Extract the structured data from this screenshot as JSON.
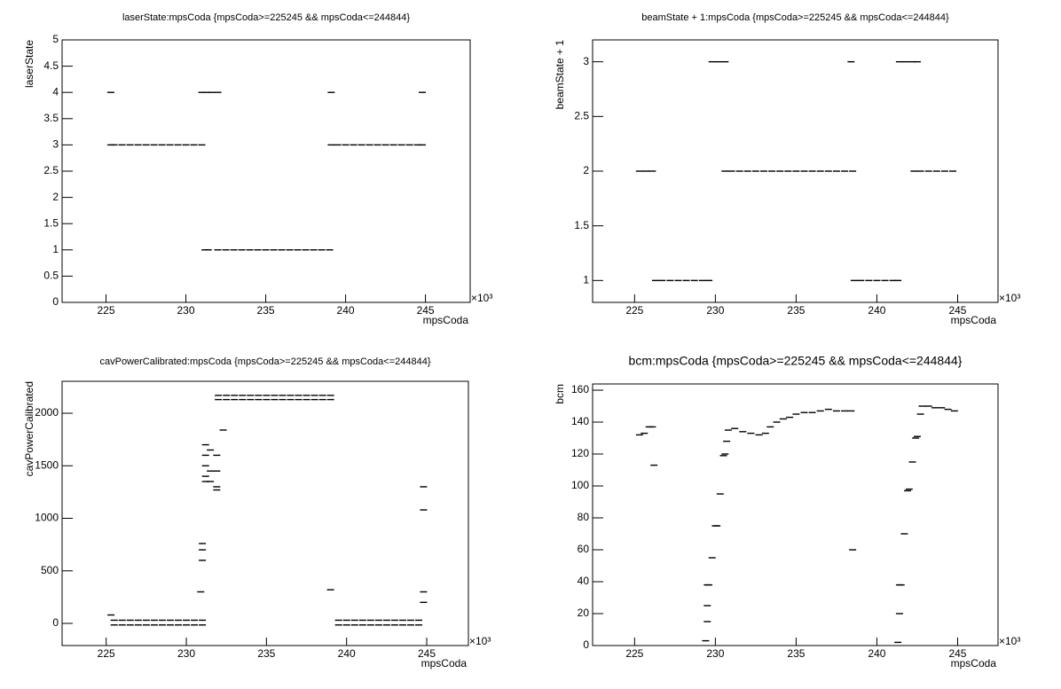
{
  "chart_data": [
    {
      "type": "scatter",
      "title": "laserState:mpsCoda {mpsCoda>=225245 && mpsCoda<=244844}",
      "x_label": "mpsCoda",
      "y_label": "laserState",
      "x_exponent": "×10³",
      "color": "#000000",
      "xlim": [
        222.25,
        247.8
      ],
      "xticks": [
        225,
        230,
        235,
        240,
        245
      ],
      "ylim": [
        0,
        5
      ],
      "yticks": [
        0,
        0.5,
        1,
        1.5,
        2,
        2.5,
        3,
        3.5,
        4,
        4.5,
        5
      ],
      "x": [
        225.3,
        225.5,
        226,
        226.5,
        227,
        227.5,
        228,
        228.5,
        229,
        229.5,
        230,
        230.5,
        231,
        225.3,
        231,
        231.3,
        231.6,
        232,
        239.1,
        244.8,
        231.2,
        231.4,
        232,
        232.5,
        233,
        233.5,
        234,
        234.5,
        235,
        235.5,
        236,
        236.5,
        237,
        237.5,
        238,
        238.5,
        239,
        239.1,
        239.5,
        240,
        240.5,
        241,
        241.5,
        242,
        242.5,
        243,
        243.5,
        244,
        244.5,
        244.8
      ],
      "values": [
        3,
        3,
        3,
        3,
        3,
        3,
        3,
        3,
        3,
        3,
        3,
        3,
        3,
        4,
        4,
        4,
        4,
        4,
        4,
        4,
        1,
        1,
        1,
        1,
        1,
        1,
        1,
        1,
        1,
        1,
        1,
        1,
        1,
        1,
        1,
        1,
        1,
        3,
        3,
        3,
        3,
        3,
        3,
        3,
        3,
        3,
        3,
        3,
        3,
        3
      ]
    },
    {
      "type": "scatter",
      "title": "beamState + 1:mpsCoda {mpsCoda>=225245 && mpsCoda<=244844}",
      "x_label": "mpsCoda",
      "y_label": "beamState + 1",
      "x_exponent": "×10³",
      "color": "#000000",
      "xlim": [
        222.4,
        247.5
      ],
      "xticks": [
        225,
        230,
        235,
        240,
        245
      ],
      "ylim": [
        0.8,
        3.2
      ],
      "yticks": [
        1,
        1.5,
        2,
        2.5,
        3
      ],
      "x": [
        225.3,
        225.7,
        226.1,
        226.3,
        226.7,
        227.2,
        227.7,
        228.2,
        228.7,
        229.2,
        229.6,
        229.8,
        230.2,
        230.6,
        230.6,
        231,
        231.5,
        232,
        232.5,
        233,
        233.5,
        234,
        234.5,
        235,
        235.5,
        236,
        236.5,
        237,
        237.5,
        238,
        238.5,
        238.4,
        238.6,
        239,
        239.5,
        240,
        240.5,
        241,
        241.3,
        241.4,
        241.8,
        242.2,
        242.5,
        242.3,
        242.7,
        243.2,
        243.7,
        244.2,
        244.7
      ],
      "values": [
        2,
        2,
        2,
        1,
        1,
        1,
        1,
        1,
        1,
        1,
        1,
        3,
        3,
        3,
        2,
        2,
        2,
        2,
        2,
        2,
        2,
        2,
        2,
        2,
        2,
        2,
        2,
        2,
        2,
        2,
        2,
        3,
        1,
        1,
        1,
        1,
        1,
        1,
        1,
        3,
        3,
        3,
        3,
        2,
        2,
        2,
        2,
        2,
        2
      ]
    },
    {
      "type": "scatter",
      "title": "cavPowerCalibrated:mpsCoda {mpsCoda>=225245 && mpsCoda<=244844}",
      "x_label": "mpsCoda",
      "y_label": "cavPowerCalibrated",
      "x_exponent": "×10³",
      "color": "#000000",
      "xlim": [
        222.25,
        247.6
      ],
      "xticks": [
        225,
        230,
        235,
        240,
        245
      ],
      "ylim": [
        -211,
        2304
      ],
      "yticks": [
        0,
        500,
        1000,
        1500,
        2000
      ],
      "x": [
        225.5,
        226,
        226.5,
        227,
        227.5,
        228,
        228.5,
        229,
        229.5,
        230,
        230.5,
        231,
        225.5,
        226,
        226.5,
        227,
        227.5,
        228,
        228.5,
        229,
        229.5,
        230,
        230.5,
        231,
        239.5,
        240,
        240.5,
        241,
        241.5,
        242,
        242.5,
        243,
        243.5,
        244,
        244.5,
        239.5,
        240,
        240.5,
        241,
        241.5,
        242,
        242.5,
        243,
        243.5,
        244,
        244.5,
        232,
        232.5,
        233,
        233.5,
        234,
        234.5,
        235,
        235.5,
        236,
        236.5,
        237,
        237.5,
        238,
        238.5,
        239,
        232,
        232.5,
        233,
        233.5,
        234,
        234.5,
        235,
        235.5,
        236,
        236.5,
        237,
        237.5,
        238,
        238.5,
        239,
        231,
        231,
        231,
        230.9,
        231.2,
        231.2,
        231.2,
        231.2,
        231.2,
        231.5,
        231.5,
        231.5,
        231.9,
        231.9,
        231.9,
        231.9,
        232.3,
        239,
        244.8,
        244.8,
        244.8,
        244.8,
        225.3
      ],
      "values": [
        30,
        30,
        30,
        30,
        30,
        30,
        30,
        30,
        30,
        30,
        30,
        30,
        -15,
        -15,
        -15,
        -15,
        -15,
        -15,
        -15,
        -15,
        -15,
        -15,
        -15,
        -15,
        30,
        30,
        30,
        30,
        30,
        30,
        30,
        30,
        30,
        30,
        30,
        -15,
        -15,
        -15,
        -15,
        -15,
        -15,
        -15,
        -15,
        -15,
        -15,
        -15,
        2170,
        2170,
        2170,
        2170,
        2170,
        2170,
        2170,
        2170,
        2170,
        2170,
        2170,
        2170,
        2170,
        2170,
        2170,
        2130,
        2130,
        2130,
        2130,
        2130,
        2130,
        2130,
        2130,
        2130,
        2130,
        2130,
        2130,
        2130,
        2130,
        2130,
        600,
        700,
        760,
        300,
        1700,
        1600,
        1500,
        1400,
        1350,
        1650,
        1450,
        1350,
        1600,
        1450,
        1300,
        1270,
        1840,
        320,
        1300,
        1080,
        300,
        200,
        80
      ]
    },
    {
      "type": "scatter",
      "title": "bcm:mpsCoda {mpsCoda>=225245 && mpsCoda<=244844}",
      "x_label": "mpsCoda",
      "y_label": "bcm",
      "x_exponent": "×10³",
      "color": "#000000",
      "xlim": [
        222.4,
        247.5
      ],
      "xticks": [
        225,
        230,
        235,
        240,
        245
      ],
      "ylim": [
        0,
        163.9
      ],
      "yticks": [
        0,
        20,
        40,
        60,
        80,
        100,
        120,
        140,
        160
      ],
      "x": [
        225.3,
        225.6,
        225.9,
        226.1,
        226.2,
        229.4,
        229.5,
        229.5,
        229.5,
        229.6,
        229.8,
        230,
        230.1,
        230.3,
        230.5,
        230.6,
        230.7,
        230.8,
        231.2,
        231.7,
        232.2,
        232.7,
        233.1,
        233.4,
        233.8,
        234.2,
        234.6,
        235,
        235.5,
        236,
        236.5,
        237,
        237.5,
        238,
        238.4,
        238.5,
        241.3,
        241.4,
        241.4,
        241.5,
        241.7,
        241.9,
        242,
        242.2,
        242.4,
        242.5,
        242.7,
        242.8,
        243.2,
        243.6,
        244,
        244.4,
        244.8
      ],
      "values": [
        132,
        133,
        137,
        137,
        113,
        3,
        15,
        25,
        38,
        38,
        55,
        75,
        75,
        95,
        119,
        120,
        128,
        135,
        136,
        134,
        133,
        132,
        133,
        137,
        140,
        142,
        143,
        145,
        146,
        146,
        147,
        148,
        147,
        147,
        147,
        60,
        2,
        20,
        38,
        38,
        70,
        97,
        98,
        115,
        130,
        131,
        145,
        150,
        150,
        149,
        149,
        148,
        147
      ]
    }
  ]
}
